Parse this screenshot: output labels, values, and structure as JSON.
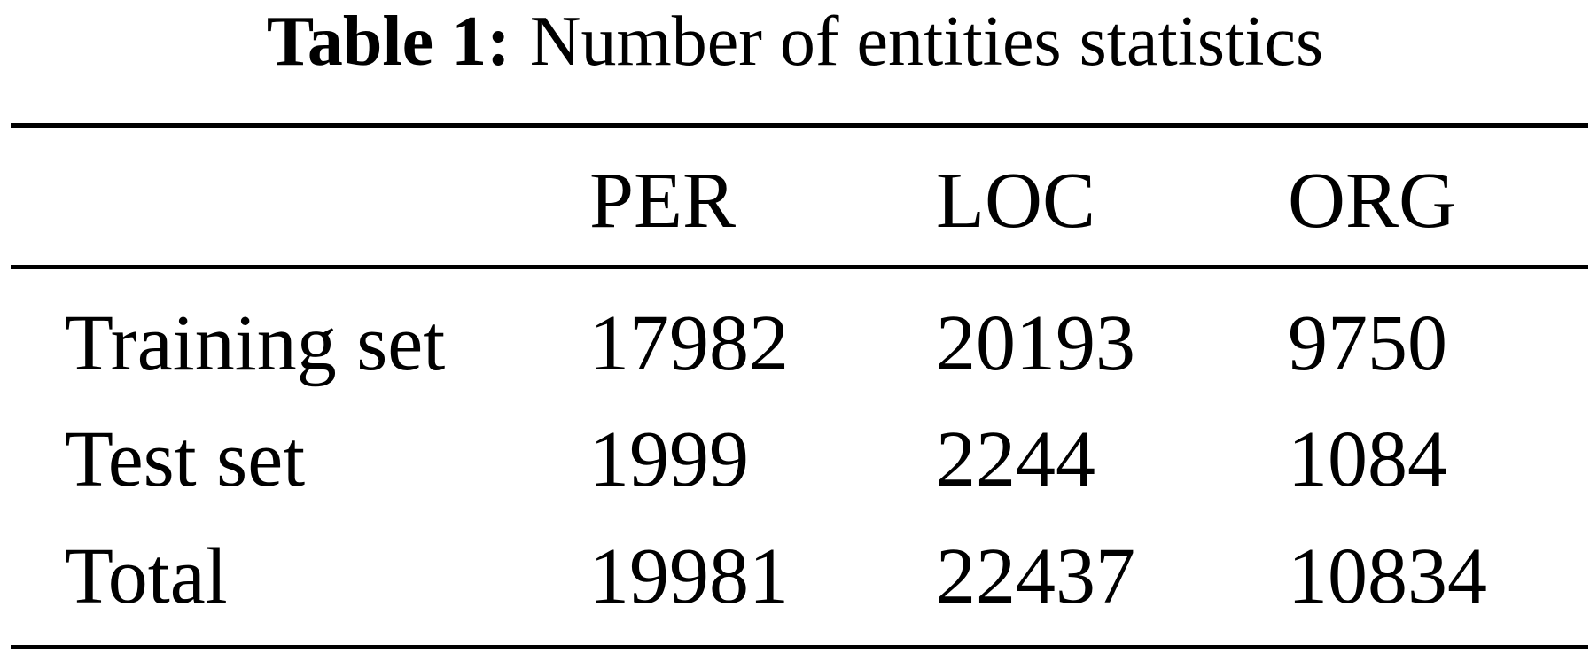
{
  "caption": {
    "label": "Table 1:",
    "text": "Number of entities statistics"
  },
  "table": {
    "columns": [
      "",
      "PER",
      "LOC",
      "ORG"
    ],
    "rows": [
      {
        "label": "Training set",
        "values": [
          "17982",
          "20193",
          "9750"
        ]
      },
      {
        "label": "Test set",
        "values": [
          "1999",
          "2244",
          "1084"
        ]
      },
      {
        "label": "Total",
        "values": [
          "19981",
          "22437",
          "10834"
        ]
      }
    ]
  }
}
